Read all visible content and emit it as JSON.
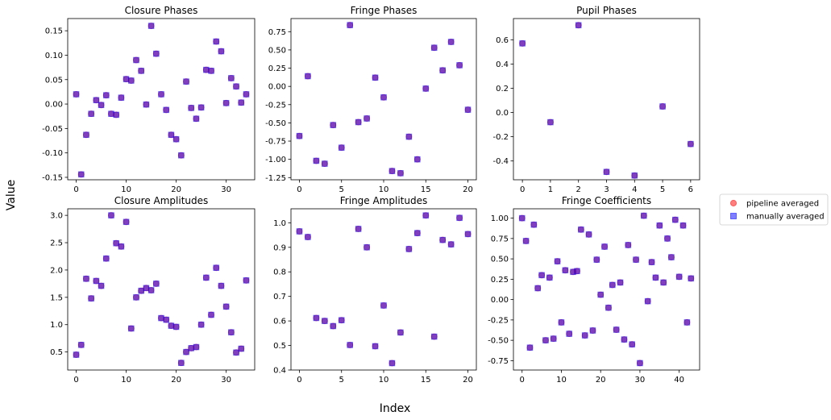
{
  "figure": {
    "xlabel": "Index",
    "ylabel": "Value",
    "legend": {
      "placement": "right",
      "entries": [
        {
          "label": "pipeline averaged",
          "color": "#ff0000",
          "marker": "circle",
          "alpha": 0.5
        },
        {
          "label": "manually averaged",
          "color": "#0000ff",
          "marker": "square",
          "alpha": 0.5
        }
      ]
    }
  },
  "chart_data": [
    {
      "type": "scatter",
      "title": "Closure Phases",
      "xlim": [
        -1.7,
        35.7
      ],
      "ylim": [
        -0.155,
        0.175
      ],
      "xticks": [
        0,
        10,
        20,
        30
      ],
      "yticks": [
        -0.15,
        -0.1,
        -0.05,
        0.0,
        0.05,
        0.1,
        0.15
      ],
      "ytick_labels": [
        "-0.15",
        "-0.10",
        "-0.05",
        "0.00",
        "0.05",
        "0.10",
        "0.15"
      ],
      "xtick_labels": [
        "0",
        "10",
        "20",
        "30"
      ],
      "values": [
        0.02,
        -0.144,
        -0.063,
        -0.02,
        0.008,
        -0.002,
        0.018,
        -0.02,
        -0.022,
        0.013,
        0.051,
        0.048,
        0.09,
        0.068,
        -0.001,
        0.16,
        0.103,
        0.02,
        -0.012,
        -0.063,
        -0.072,
        -0.105,
        0.046,
        -0.008,
        -0.03,
        -0.007,
        0.07,
        0.068,
        0.128,
        0.108,
        0.002,
        0.053,
        0.036,
        0.003,
        0.02
      ]
    },
    {
      "type": "scatter",
      "title": "Fringe Phases",
      "xlim": [
        -1.0,
        21.0
      ],
      "ylim": [
        -1.28,
        0.93
      ],
      "xticks": [
        0,
        5,
        10,
        15,
        20
      ],
      "yticks": [
        -1.25,
        -1.0,
        -0.75,
        -0.5,
        -0.25,
        0.0,
        0.25,
        0.5,
        0.75
      ],
      "ytick_labels": [
        "-1.25",
        "-1.00",
        "-0.75",
        "-0.50",
        "-0.25",
        "0.00",
        "0.25",
        "0.50",
        "0.75"
      ],
      "xtick_labels": [
        "0",
        "5",
        "10",
        "15",
        "20"
      ],
      "values": [
        -0.68,
        0.14,
        -1.02,
        -1.06,
        -0.53,
        -0.84,
        0.84,
        -0.49,
        -0.44,
        0.12,
        -0.15,
        -1.16,
        -1.19,
        -0.69,
        -1.0,
        -0.03,
        0.53,
        0.22,
        0.61,
        0.29,
        -0.32
      ]
    },
    {
      "type": "scatter",
      "title": "Pupil Phases",
      "xlim": [
        -0.32,
        6.32
      ],
      "ylim": [
        -0.555,
        0.775
      ],
      "xticks": [
        0,
        1,
        2,
        3,
        4,
        5,
        6
      ],
      "yticks": [
        -0.4,
        -0.2,
        0.0,
        0.2,
        0.4,
        0.6
      ],
      "ytick_labels": [
        "-0.4",
        "-0.2",
        "0.0",
        "0.2",
        "0.4",
        "0.6"
      ],
      "xtick_labels": [
        "0",
        "1",
        "2",
        "3",
        "4",
        "5",
        "6"
      ],
      "values": [
        0.57,
        -0.08,
        0.72,
        -0.49,
        -0.52,
        0.05,
        -0.26
      ]
    },
    {
      "type": "scatter",
      "title": "Closure Amplitudes",
      "xlim": [
        -1.7,
        35.7
      ],
      "ylim": [
        0.17,
        3.12
      ],
      "xticks": [
        0,
        10,
        20,
        30
      ],
      "yticks": [
        0.5,
        1.0,
        1.5,
        2.0,
        2.5,
        3.0
      ],
      "ytick_labels": [
        "0.5",
        "1.0",
        "1.5",
        "2.0",
        "2.5",
        "3.0"
      ],
      "xtick_labels": [
        "0",
        "10",
        "20",
        "30"
      ],
      "values": [
        0.45,
        0.63,
        1.84,
        1.48,
        1.8,
        1.71,
        2.21,
        3.0,
        2.49,
        2.43,
        2.88,
        0.93,
        1.5,
        1.62,
        1.67,
        1.63,
        1.75,
        1.12,
        1.09,
        0.98,
        0.96,
        0.3,
        0.5,
        0.57,
        0.59,
        1.0,
        1.86,
        1.18,
        2.04,
        1.71,
        1.33,
        0.86,
        0.49,
        0.56,
        1.81
      ]
    },
    {
      "type": "scatter",
      "title": "Fringe Amplitudes",
      "xlim": [
        -1.0,
        21.0
      ],
      "ylim": [
        0.4,
        1.057
      ],
      "xticks": [
        0,
        5,
        10,
        15,
        20
      ],
      "yticks": [
        0.4,
        0.5,
        0.6,
        0.7,
        0.8,
        0.9,
        1.0
      ],
      "ytick_labels": [
        "0.4",
        "0.5",
        "0.6",
        "0.7",
        "0.8",
        "0.9",
        "1.0"
      ],
      "xtick_labels": [
        "0",
        "5",
        "10",
        "15",
        "20"
      ],
      "values": [
        0.965,
        0.942,
        0.612,
        0.6,
        0.579,
        0.603,
        0.502,
        0.975,
        0.9,
        0.497,
        0.663,
        0.428,
        0.553,
        0.893,
        0.958,
        1.03,
        0.536,
        0.93,
        0.912,
        1.02,
        0.954
      ]
    },
    {
      "type": "scatter",
      "title": "Fringe Coefficients",
      "xlim": [
        -2.2,
        45.2
      ],
      "ylim": [
        -0.865,
        1.115
      ],
      "xticks": [
        0,
        10,
        20,
        30,
        40
      ],
      "yticks": [
        -0.75,
        -0.5,
        -0.25,
        0.0,
        0.25,
        0.5,
        0.75,
        1.0
      ],
      "ytick_labels": [
        "-0.75",
        "-0.50",
        "-0.25",
        "0.00",
        "0.25",
        "0.50",
        "0.75",
        "1.00"
      ],
      "xtick_labels": [
        "0",
        "10",
        "20",
        "30",
        "40"
      ],
      "values": [
        1.0,
        0.72,
        -0.59,
        0.92,
        0.14,
        0.3,
        -0.5,
        0.27,
        -0.48,
        0.47,
        -0.28,
        0.36,
        -0.42,
        0.34,
        0.35,
        0.86,
        -0.44,
        0.8,
        -0.38,
        0.49,
        0.06,
        0.65,
        -0.1,
        0.18,
        -0.37,
        0.21,
        -0.49,
        0.67,
        -0.55,
        0.49,
        -0.78,
        1.03,
        -0.02,
        0.46,
        0.27,
        0.91,
        0.21,
        0.75,
        0.52,
        0.98,
        0.28,
        0.91,
        -0.28,
        0.26
      ]
    }
  ]
}
